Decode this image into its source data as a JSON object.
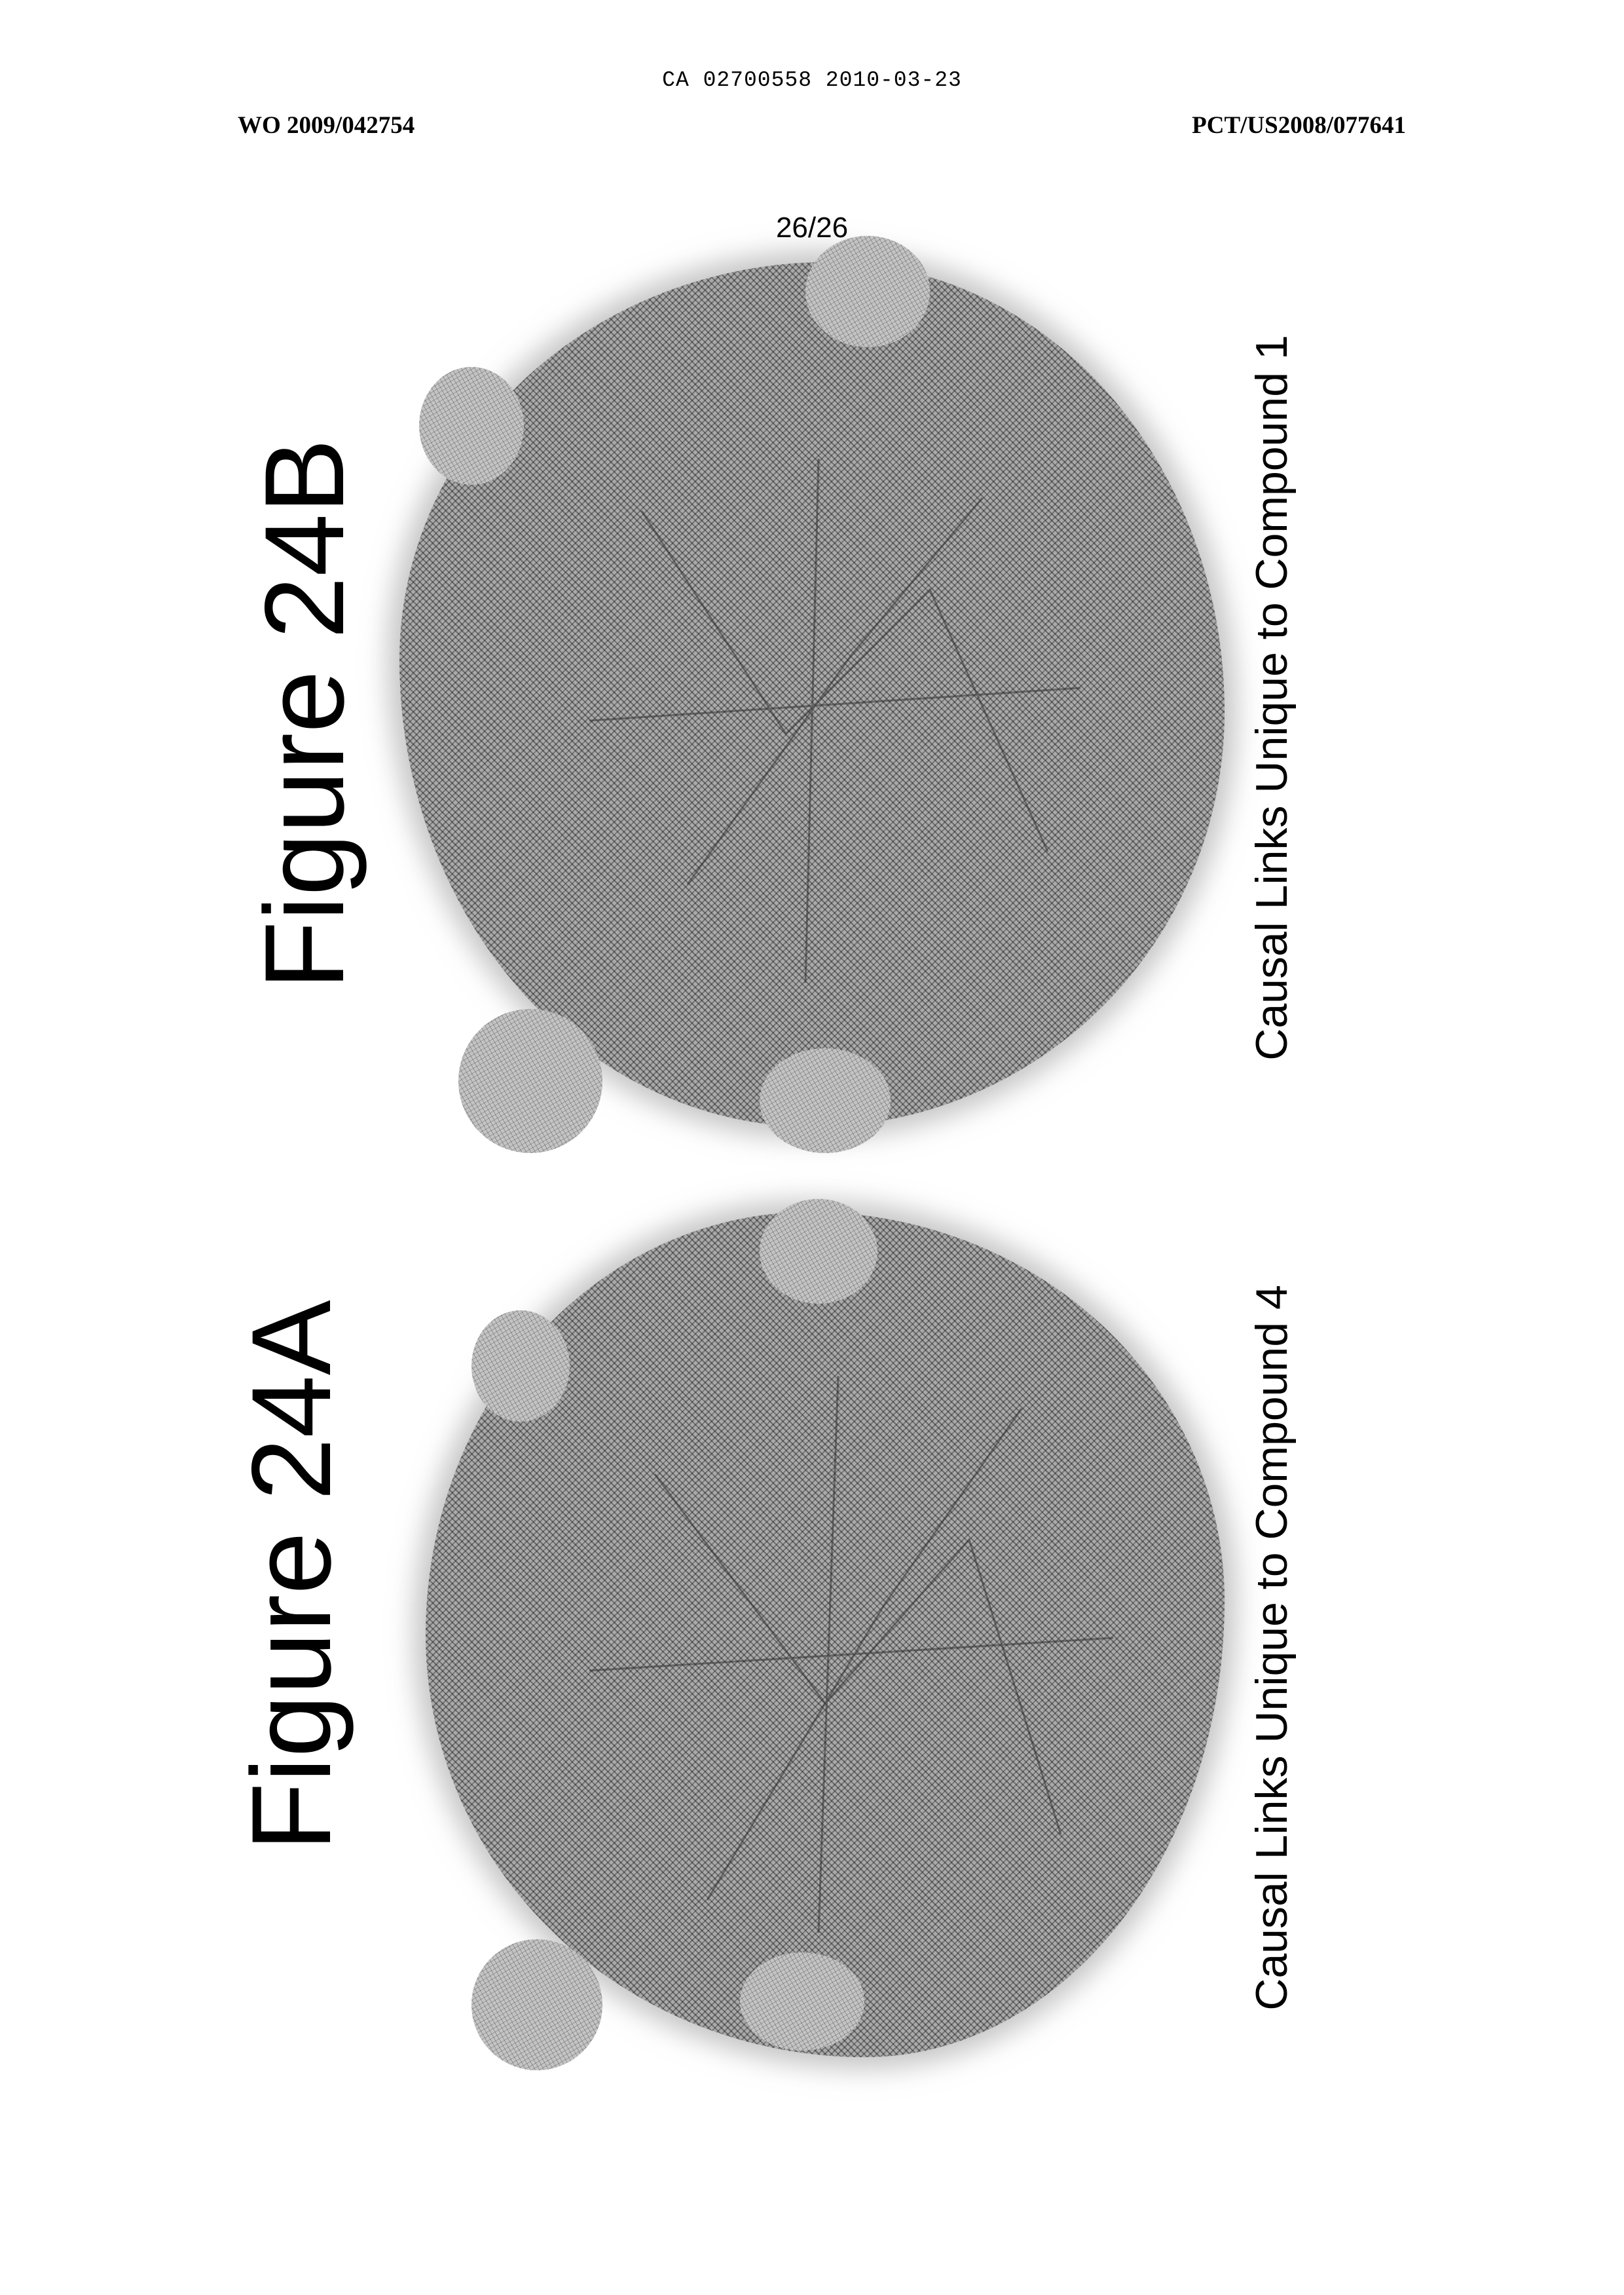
{
  "header": {
    "application_number": "CA 02700558 2010-03-23",
    "publication_number": "WO 2009/042754",
    "pct_number": "PCT/US2008/077641"
  },
  "page_number": "26/26",
  "figures": [
    {
      "title": "Figure 24B",
      "caption": "Causal Links Unique to Compound 1"
    },
    {
      "title": "Figure 24A",
      "caption": "Causal Links Unique to Compound 4"
    }
  ]
}
